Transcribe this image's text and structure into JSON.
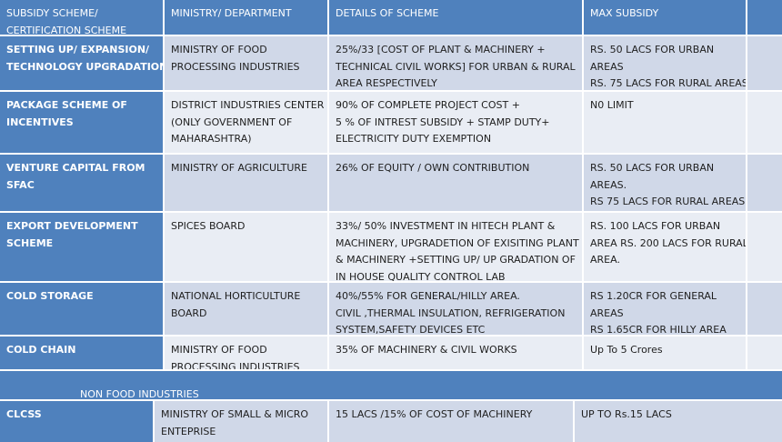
{
  "header": {
    "c1": [
      "SUBSIDY  SCHEME/",
      "CERTIFICATION  SCHEME"
    ],
    "c2": [
      "MINISTRY/  DEPARTMENT"
    ],
    "c3": [
      "DETAILS OF SCHEME"
    ],
    "c4": [
      "MAX SUBSIDY"
    ]
  },
  "rows": [
    {
      "scheme": [
        "SETTING  UP/ EXPANSION/",
        "TECHNOLOGY UPGRADATION"
      ],
      "ministry": [
        "MINISTRY OF FOOD",
        "PROCESSING INDUSTRIES"
      ],
      "details": [
        "25%/33 [COST OF PLANT & MACHINERY  +",
        "TECHNICAL  CIVIL WORKS] FOR URBAN  & RURAL",
        "AREA RESPECTIVELY"
      ],
      "subsidy": [
        "RS. 50 LACS  FOR URBAN",
        "AREAS",
        "RS. 75 LACS  FOR RURAL  AREAS"
      ]
    },
    {
      "scheme": [
        "PACKAGE SCHEME  OF",
        "INCENTIVES"
      ],
      "ministry": [
        "DISTRICT INDUSTRIES CENTER",
        "(ONLY GOVERNMENT   OF",
        "MAHARASHTRA)"
      ],
      "details": [
        "90% OF COMPLETE  PROJECT COST +",
        "5 %  OF INTREST SUBSIDY + STAMP DUTY+",
        "ELECTRICITY DUTY  EXEMPTION"
      ],
      "subsidy": [
        "N0 LIMIT"
      ]
    },
    {
      "scheme": [
        "VENTURE  CAPITAL FROM",
        "SFAC"
      ],
      "ministry": [
        "MINISTRY OF AGRICULTURE"
      ],
      "details": [
        "26% OF EQUITY / OWN CONTRIBUTION"
      ],
      "subsidy": [
        "RS. 50 LACS  FOR URBAN",
        "AREAS.",
        "RS 75 LACS  FOR RURAL AREAS"
      ]
    },
    {
      "scheme": [
        "EXPORT  DEVELOPMENT",
        "SCHEME"
      ],
      "ministry": [
        "SPICES BOARD"
      ],
      "details": [
        "33%/ 50% INVESTMENT   IN HITECH PLANT  &",
        "MACHINERY,  UPGRADETION OF EXISITING PLANT",
        "& MACHINERY +SETTING UP/ UP GRADATION  OF",
        "IN HOUSE QUALITY CONTROL LAB"
      ],
      "subsidy": [
        "RS.  100 LACS  FOR URBAN",
        "AREA RS.  200 LACS  FOR RURAL",
        "AREA."
      ]
    },
    {
      "scheme": [
        "COLD STORAGE"
      ],
      "ministry": [
        "NATIONAL  HORTICULTURE",
        "BOARD"
      ],
      "details": [
        "40%/55% FOR  GENERAL/HILLY    AREA.",
        "CIVIL ,THERMAL INSULATION,  REFRIGERATION",
        "SYSTEM,SAFETY   DEVICES ETC"
      ],
      "subsidy": [
        "RS 1.20CR FOR GENERAL",
        "AREAS",
        "RS  1.65CR FOR HILLY AREA"
      ]
    },
    {
      "scheme": [
        "COLD CHAIN"
      ],
      "ministry": [
        "MINISTRY OF FOOD",
        "PROCESSING INDUSTRIES"
      ],
      "details": [
        "35% OF MACHINERY  & CIVIL WORKS"
      ],
      "subsidy": [
        "Up To 5 Crores"
      ]
    }
  ],
  "section_label": "NON FOOD INDUSTRIES",
  "last_row": {
    "scheme": [
      "CLCSS"
    ],
    "ministry": [
      "MINISTRY OF SMALL  &  MICRO",
      "ENTEPRISE"
    ],
    "details": [
      "15 LACS /15% OF COST OF MACHINERY"
    ],
    "subsidy": [
      "UP TO Rs.15 LACS"
    ]
  }
}
